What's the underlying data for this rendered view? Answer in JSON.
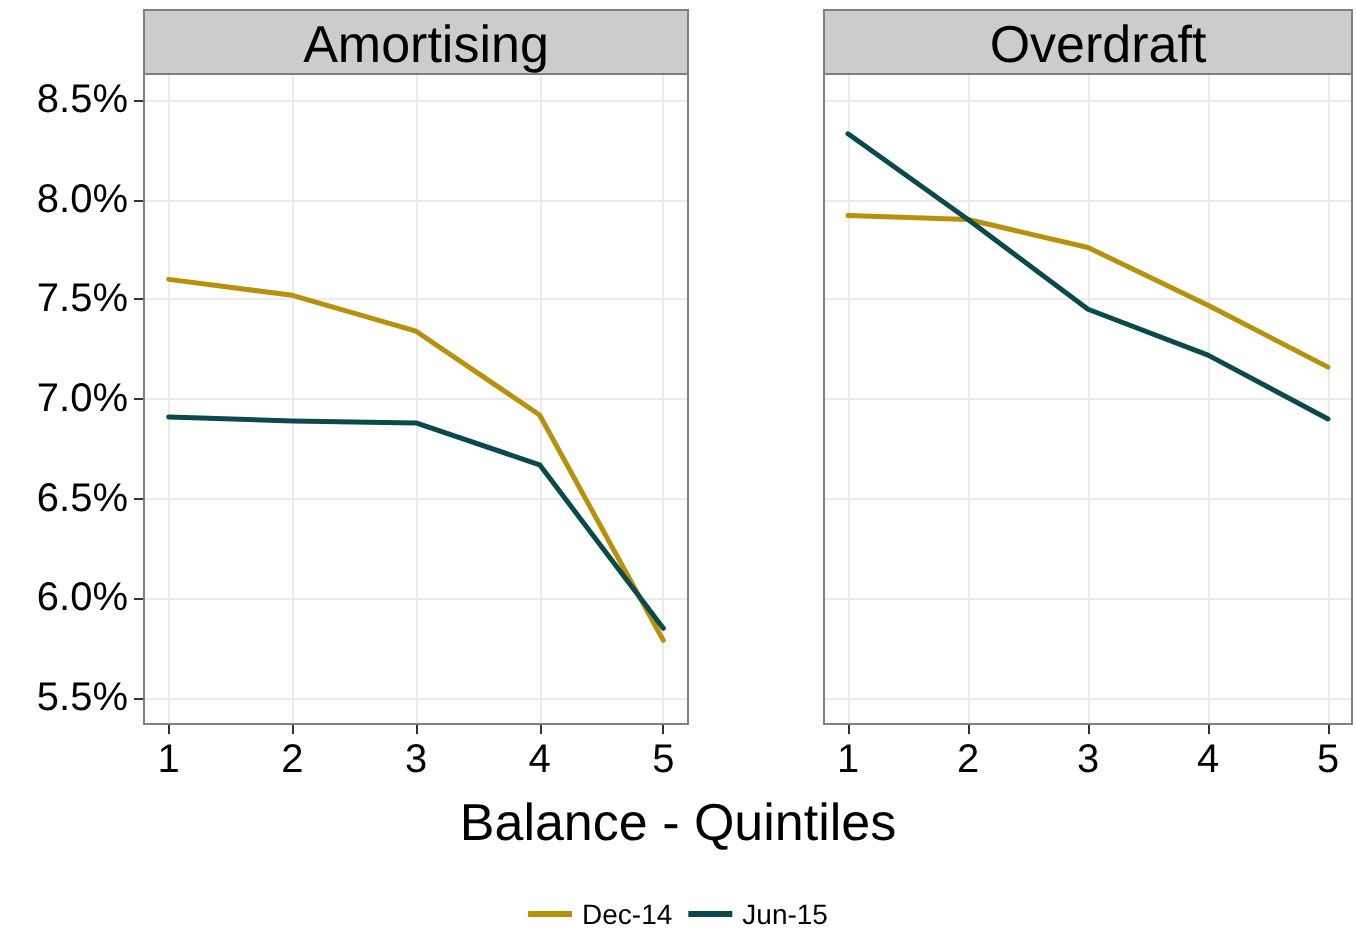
{
  "chart_data": [
    {
      "type": "line",
      "title": "Amortising",
      "xlabel": "Balance - Quintiles",
      "x": [
        1,
        2,
        3,
        4,
        5
      ],
      "series": [
        {
          "name": "Dec-14",
          "color": "#b8900a",
          "values": [
            7.6,
            7.52,
            7.34,
            6.92,
            5.79
          ]
        },
        {
          "name": "Jun-15",
          "color": "#0b4a4a",
          "values": [
            6.91,
            6.89,
            6.88,
            6.67,
            5.85
          ]
        }
      ],
      "xlim": [
        0.8,
        5.2
      ],
      "xticks": [
        1,
        2,
        3,
        4,
        5
      ],
      "ylim": [
        5.37,
        8.63
      ],
      "yticks": [
        {
          "value": 5.5,
          "label": "5.5%"
        },
        {
          "value": 6.0,
          "label": "6.0%"
        },
        {
          "value": 6.5,
          "label": "6.5%"
        },
        {
          "value": 7.0,
          "label": "7.0%"
        },
        {
          "value": 7.5,
          "label": "7.5%"
        },
        {
          "value": 8.0,
          "label": "8.0%"
        },
        {
          "value": 8.5,
          "label": "8.5%"
        }
      ],
      "grid": true,
      "legend": "bottom",
      "marker": "none",
      "line_style": "solid"
    },
    {
      "type": "line",
      "title": "Overdraft",
      "x": [
        1,
        2,
        3,
        4,
        5
      ],
      "series": [
        {
          "color": "#b8900a",
          "values": [
            7.92,
            7.9,
            7.76,
            7.47,
            7.16
          ]
        },
        {
          "color": "#0b4a4a",
          "values": [
            8.33,
            7.9,
            7.45,
            7.22,
            6.9
          ]
        }
      ],
      "xlim": [
        0.8,
        5.2
      ],
      "xticks": [
        1,
        2,
        3,
        4,
        5
      ],
      "ylim": [
        5.37,
        8.63
      ],
      "yticks": [
        5.5,
        6.0,
        6.5,
        7.0,
        7.5,
        8.0,
        8.5
      ],
      "tick_labels": "x",
      "grid": true,
      "marker": "none",
      "line_style": "solid"
    }
  ]
}
